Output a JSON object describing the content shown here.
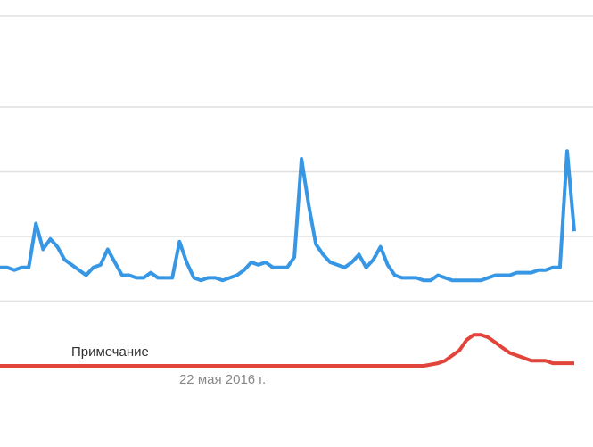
{
  "chart_data": {
    "type": "line",
    "categories": [
      null,
      null,
      null,
      null,
      null,
      null,
      null,
      null,
      null,
      null,
      null,
      null,
      null,
      null,
      null,
      null,
      null,
      null,
      null,
      null,
      null,
      null,
      null,
      null,
      null,
      null,
      null,
      null,
      null,
      null,
      null,
      "22 мая 2016 г.",
      null,
      null,
      null,
      null,
      null,
      null,
      null,
      null,
      null,
      null,
      null,
      null,
      null,
      null,
      null,
      null,
      null,
      null,
      null,
      null,
      null,
      null,
      null,
      null,
      null,
      null,
      null,
      null,
      null,
      null,
      null,
      null,
      null,
      null,
      null,
      null,
      null,
      null,
      null,
      null,
      null,
      null,
      null,
      null,
      null,
      null,
      null,
      null,
      null
    ],
    "series": [
      {
        "color": "#3897e4",
        "values": [
          38,
          38,
          37,
          38,
          38,
          55,
          45,
          49,
          46,
          41,
          39,
          37,
          35,
          38,
          39,
          45,
          40,
          35,
          35,
          34,
          34,
          36,
          34,
          34,
          34,
          48,
          40,
          34,
          33,
          34,
          34,
          33,
          34,
          35,
          37,
          40,
          39,
          40,
          38,
          38,
          38,
          42,
          80,
          62,
          47,
          43,
          40,
          39,
          38,
          40,
          43,
          38,
          41,
          46,
          39,
          35,
          34,
          34,
          34,
          33,
          33,
          35,
          34,
          33,
          33,
          33,
          33,
          33,
          34,
          35,
          35,
          35,
          36,
          36,
          36,
          37,
          37,
          38,
          38,
          83,
          52
        ]
      },
      {
        "color": "#e0443a",
        "values": [
          0,
          0,
          0,
          0,
          0,
          0,
          0,
          0,
          0,
          0,
          0,
          0,
          0,
          0,
          0,
          0,
          0,
          0,
          0,
          0,
          0,
          0,
          0,
          0,
          0,
          0,
          0,
          0,
          0,
          0,
          0,
          0,
          0,
          0,
          0,
          0,
          0,
          0,
          0,
          0,
          0,
          0,
          0,
          0,
          0,
          0,
          0,
          0,
          0,
          0,
          0,
          0,
          0,
          0,
          0,
          0,
          0,
          0,
          0,
          0,
          0.5,
          1,
          2,
          4,
          6,
          10,
          12,
          12,
          11,
          9,
          7,
          5,
          4,
          3,
          2,
          2,
          2,
          1,
          1,
          1,
          1
        ]
      }
    ],
    "annotation": "Примечание",
    "ylim": [
      0,
      100
    ],
    "yticks": [
      25,
      50,
      75,
      100
    ],
    "grid": true
  }
}
